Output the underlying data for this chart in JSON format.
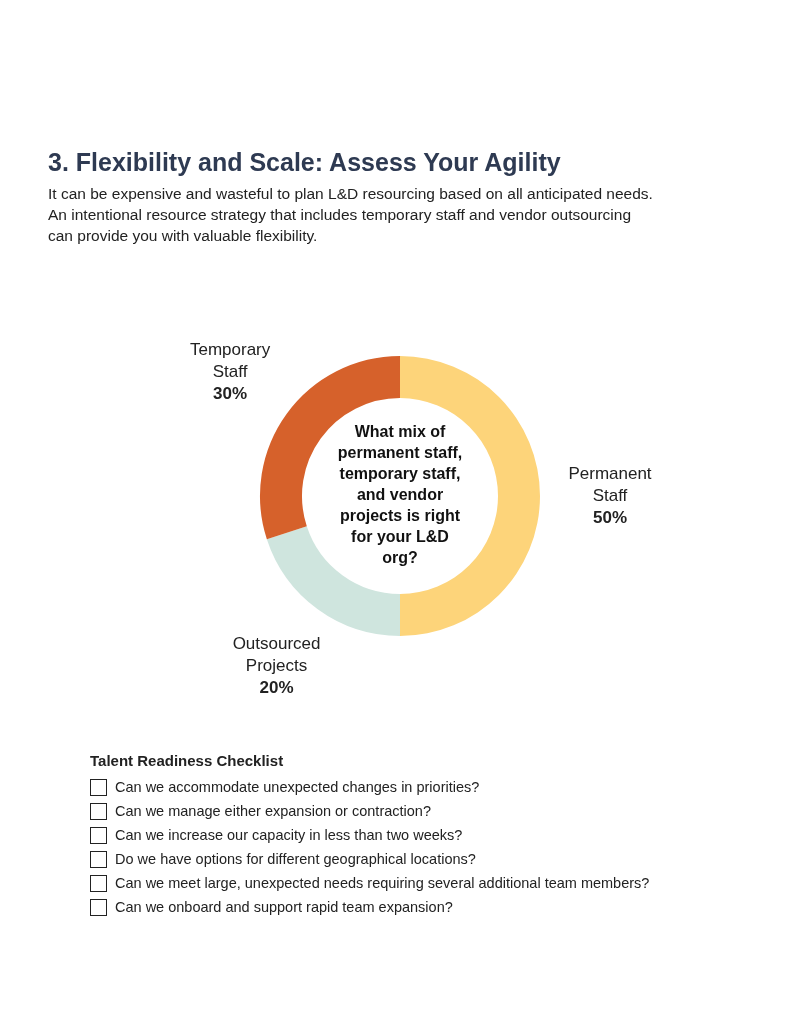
{
  "chart_data": {
    "type": "donut",
    "title": "3. Flexibility and Scale: Assess Your Agility",
    "subtitle": "It can be expensive and wasteful to plan L&D resourcing based on all anticipated needs. An intentional resource strategy that includes temporary staff and vendor outsourcing can provide you with valuable flexibility.",
    "categories": [
      "Permanent Staff",
      "Outsourced Projects",
      "Temporary Staff"
    ],
    "values": [
      50,
      20,
      30
    ],
    "colors": [
      "#fdd47a",
      "#cfe5de",
      "#d6612b"
    ],
    "value_labels": [
      "50%",
      "20%",
      "30%"
    ],
    "legend": false,
    "annotations": [
      "What mix of permanent staff, temporary staff, and vendor projects is right for your L&D org?",
      "Talent Readiness Checklist",
      "Can we accommodate unexpected changes in priorities?",
      "Can we manage either expansion or contraction?",
      "Can we increase our capacity in less than two weeks?",
      "Do we have options for different geographical locations?",
      "Can we meet large, unexpected needs requiring several additional team members?",
      "Can we onboard and support rapid team expansion?"
    ]
  }
}
